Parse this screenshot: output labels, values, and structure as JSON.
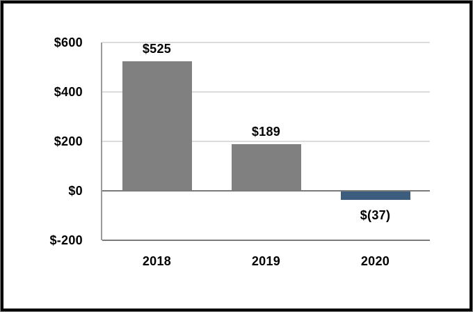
{
  "chart_data": {
    "type": "bar",
    "title": "",
    "xlabel": "",
    "ylabel": "",
    "categories": [
      "2018",
      "2019",
      "2020"
    ],
    "values": [
      525,
      189,
      -37
    ],
    "data_labels": [
      "$525",
      "$189",
      "$(37)"
    ],
    "y_tick_labels": [
      "$600",
      "$400",
      "$200",
      "$0",
      "$-200"
    ],
    "y_tick_values": [
      600,
      400,
      200,
      0,
      -200
    ],
    "ylim": [
      -200,
      600
    ],
    "grid": true,
    "legend": false,
    "bar_colors": [
      "#808080",
      "#808080",
      "#3C5D7E"
    ],
    "colors": {
      "positive_bar": "#808080",
      "negative_bar": "#3C5D7E",
      "gridline": "#DCDCDC",
      "zero_line": "#7A7A7A",
      "baseline": "#7A7A7A",
      "y_axis_line": "#9A9A9A",
      "label_text": "#000000",
      "background": "#FFFFFF",
      "frame_border": "#000000"
    }
  }
}
